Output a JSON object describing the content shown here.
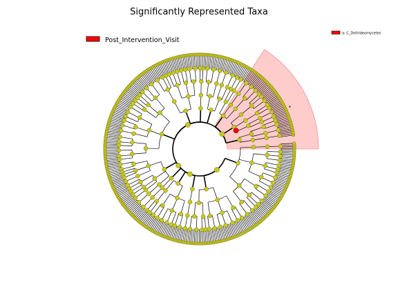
{
  "figure": {
    "title": "Significantly Represented Taxa"
  },
  "legend": {
    "group_label": "Post_Intervention_Visit",
    "group_color": "#ff0000",
    "biomarker_label": "a: C_Dothideomycetes",
    "biomarker_color": "#ff0000"
  },
  "highlight": {
    "letter": "a",
    "fill_color": "#ff9a9a"
  },
  "colors": {
    "node_default": "#c8c81e",
    "node_edge": "#6e6e1a",
    "node_biomarker": "#ff0000",
    "branch": "#000000"
  }
}
